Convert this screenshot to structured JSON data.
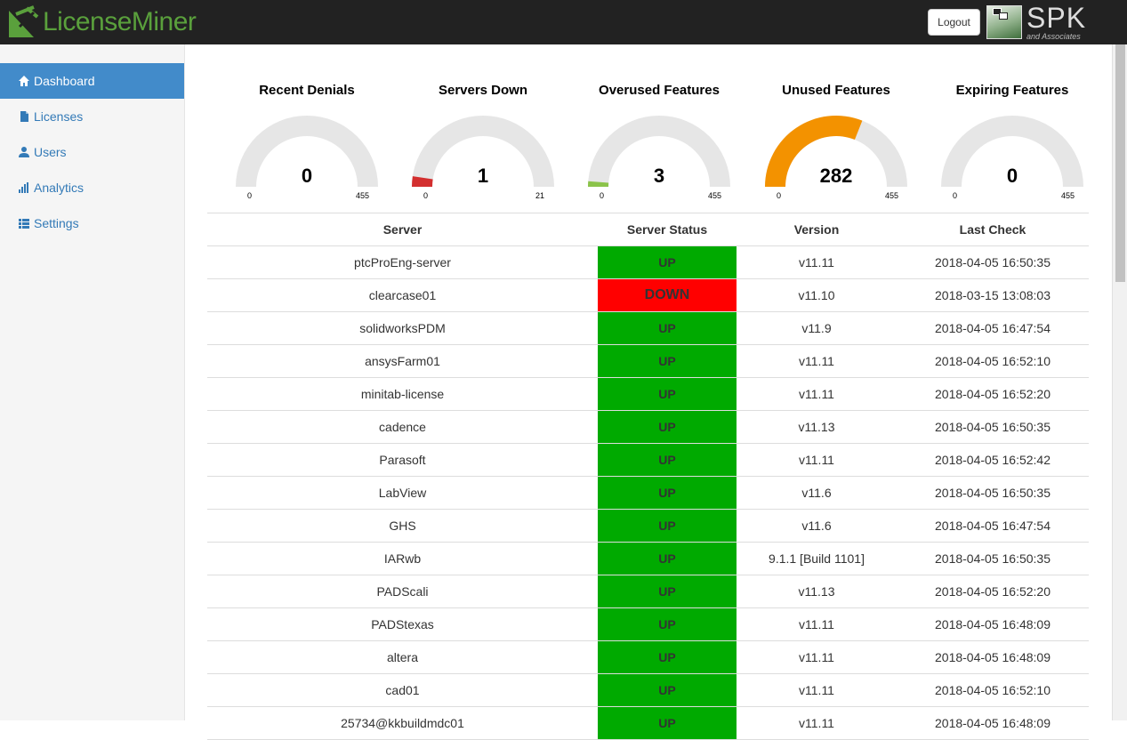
{
  "header": {
    "logo_text": "LicenseMiner",
    "logout_label": "Logout",
    "partner_logo": "SPK",
    "partner_sub": "and Associates"
  },
  "sidebar": {
    "items": [
      {
        "label": "Dashboard",
        "icon": "home-icon",
        "active": true
      },
      {
        "label": "Licenses",
        "icon": "file-icon",
        "active": false
      },
      {
        "label": "Users",
        "icon": "user-icon",
        "active": false
      },
      {
        "label": "Analytics",
        "icon": "bar-chart-icon",
        "active": false
      },
      {
        "label": "Settings",
        "icon": "list-icon",
        "active": false
      }
    ]
  },
  "gauges": [
    {
      "title": "Recent Denials",
      "value": 0,
      "value_text": "0",
      "min": "0",
      "max": "455",
      "max_num": 455,
      "color": "#e53935"
    },
    {
      "title": "Servers Down",
      "value": 1,
      "value_text": "1",
      "min": "0",
      "max": "21",
      "max_num": 21,
      "color": "#d32f2f"
    },
    {
      "title": "Overused Features",
      "value": 3,
      "value_text": "3",
      "min": "0",
      "max": "455",
      "max_num": 455,
      "color": "#8bc34a"
    },
    {
      "title": "Unused Features",
      "value": 282,
      "value_text": "282",
      "min": "0",
      "max": "455",
      "max_num": 455,
      "color": "#f39200"
    },
    {
      "title": "Expiring Features",
      "value": 0,
      "value_text": "0",
      "min": "0",
      "max": "455",
      "max_num": 455,
      "color": "#f39200"
    }
  ],
  "table": {
    "headers": [
      "Server",
      "Server Status",
      "Version",
      "Last Check"
    ],
    "rows": [
      {
        "server": "ptcProEng-server",
        "status": "UP",
        "version": "v11.11",
        "last_check": "2018-04-05 16:50:35"
      },
      {
        "server": "clearcase01",
        "status": "DOWN",
        "version": "v11.10",
        "last_check": "2018-03-15 13:08:03"
      },
      {
        "server": "solidworksPDM",
        "status": "UP",
        "version": "v11.9",
        "last_check": "2018-04-05 16:47:54"
      },
      {
        "server": "ansysFarm01",
        "status": "UP",
        "version": "v11.11",
        "last_check": "2018-04-05 16:52:10"
      },
      {
        "server": "minitab-license",
        "status": "UP",
        "version": "v11.11",
        "last_check": "2018-04-05 16:52:20"
      },
      {
        "server": "cadence",
        "status": "UP",
        "version": "v11.13",
        "last_check": "2018-04-05 16:50:35"
      },
      {
        "server": "Parasoft",
        "status": "UP",
        "version": "v11.11",
        "last_check": "2018-04-05 16:52:42"
      },
      {
        "server": "LabView",
        "status": "UP",
        "version": "v11.6",
        "last_check": "2018-04-05 16:50:35"
      },
      {
        "server": "GHS",
        "status": "UP",
        "version": "v11.6",
        "last_check": "2018-04-05 16:47:54"
      },
      {
        "server": "IARwb",
        "status": "UP",
        "version": "9.1.1 [Build 1101]",
        "last_check": "2018-04-05 16:50:35"
      },
      {
        "server": "PADScali",
        "status": "UP",
        "version": "v11.13",
        "last_check": "2018-04-05 16:52:20"
      },
      {
        "server": "PADStexas",
        "status": "UP",
        "version": "v11.11",
        "last_check": "2018-04-05 16:48:09"
      },
      {
        "server": "altera",
        "status": "UP",
        "version": "v11.11",
        "last_check": "2018-04-05 16:48:09"
      },
      {
        "server": "cad01",
        "status": "UP",
        "version": "v11.11",
        "last_check": "2018-04-05 16:52:10"
      },
      {
        "server": "25734@kkbuildmdc01",
        "status": "UP",
        "version": "v11.11",
        "last_check": "2018-04-05 16:48:09"
      }
    ]
  },
  "colors": {
    "up": "#00aa00",
    "down": "#ff0000",
    "accent": "#428bca",
    "gauge_track": "#e6e6e6"
  }
}
